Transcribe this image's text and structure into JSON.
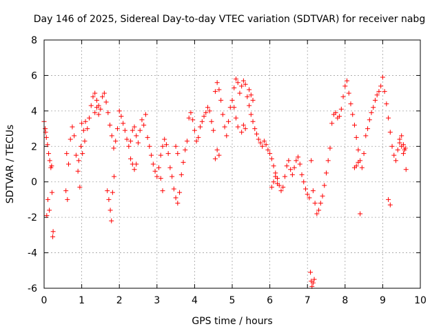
{
  "chart_data": {
    "type": "scatter",
    "title": "Day 146 of 2025, Sidereal Day-to-day VTEC variation (SDTVAR) for receiver nabg",
    "xlabel": "GPS time / hours",
    "ylabel": "SDTVAR / TECUs",
    "xlim": [
      0,
      10
    ],
    "ylim": [
      -6,
      8
    ],
    "xticks": [
      "0",
      "1",
      "2",
      "3",
      "4",
      "5",
      "6",
      "7",
      "8",
      "9",
      "10"
    ],
    "yticks": [
      "-6",
      "-4",
      "-2",
      "0",
      "2",
      "4",
      "6",
      "8"
    ],
    "grid": true,
    "marker": "+",
    "marker_color": "#ff0000",
    "series": [
      {
        "name": "SDTVAR",
        "x": [
          0.0,
          0.03,
          0.06,
          0.09,
          0.12,
          0.15,
          0.18,
          0.21,
          0.24,
          0.04,
          0.07,
          0.1,
          0.14,
          0.2,
          0.23,
          0.6,
          0.65,
          0.7,
          0.75,
          0.8,
          0.85,
          0.9,
          0.95,
          1.0,
          1.05,
          1.1,
          1.15,
          1.2,
          1.25,
          1.3,
          1.35,
          1.4,
          1.45,
          1.5,
          1.55,
          1.6,
          1.65,
          1.7,
          1.75,
          1.8,
          1.85,
          1.9,
          1.95,
          2.0,
          2.05,
          2.1,
          2.15,
          2.2,
          2.25,
          2.3,
          2.35,
          2.4,
          2.45,
          2.5,
          2.55,
          2.6,
          2.65,
          2.7,
          2.75,
          2.8,
          1.68,
          1.72,
          1.76,
          1.79,
          1.82,
          1.86,
          0.62,
          0.58,
          0.92,
          0.98,
          1.02,
          1.08,
          2.85,
          2.9,
          2.95,
          3.0,
          3.05,
          3.1,
          3.15,
          3.2,
          3.25,
          3.3,
          3.35,
          3.4,
          3.45,
          3.5,
          3.55,
          3.6,
          3.65,
          3.7,
          3.75,
          3.8,
          3.85,
          3.9,
          3.95,
          4.0,
          4.05,
          4.1,
          4.15,
          4.2,
          4.25,
          4.3,
          4.35,
          4.4,
          4.45,
          4.5,
          4.55,
          4.6,
          4.65,
          4.7,
          4.75,
          4.8,
          4.85,
          4.9,
          4.95,
          5.0,
          5.05,
          5.1,
          5.15,
          5.2,
          5.25,
          5.3,
          5.35,
          5.4,
          5.45,
          5.5,
          5.55,
          5.6,
          5.65,
          5.7,
          5.75,
          5.8,
          5.85,
          5.9,
          5.95,
          6.0,
          6.05,
          6.1,
          6.15,
          6.2,
          6.25,
          6.3,
          6.35,
          6.4,
          6.45,
          6.5,
          6.55,
          6.6,
          6.65,
          6.7,
          6.75,
          6.8,
          6.85,
          6.9,
          6.95,
          7.0,
          7.05,
          7.1,
          7.15,
          7.2,
          7.25,
          7.3,
          7.35,
          7.4,
          7.45,
          7.5,
          7.55,
          7.6,
          7.65,
          7.7,
          7.75,
          7.8,
          7.85,
          7.9,
          7.95,
          8.0,
          8.05,
          8.1,
          8.15,
          8.2,
          8.25,
          8.3,
          8.35,
          8.4,
          8.45,
          8.5,
          8.55,
          8.6,
          8.65,
          8.7,
          8.75,
          8.8,
          8.85,
          8.9,
          8.95,
          9.0,
          9.05,
          9.1,
          9.15,
          9.2,
          9.25,
          9.3,
          9.35,
          9.4,
          9.45,
          9.5,
          9.55,
          9.6,
          9.62,
          7.08,
          7.1,
          7.12,
          7.15,
          7.18,
          3.1,
          3.15,
          3.5,
          3.55,
          4.55,
          4.6,
          4.65,
          5.05,
          5.1,
          5.15,
          5.25,
          5.3,
          5.35,
          5.45,
          5.5,
          5.55,
          8.25,
          8.3,
          8.35,
          8.4,
          9.15,
          9.2,
          9.45,
          9.5,
          9.55,
          9.58,
          6.05,
          6.1,
          6.15,
          6.2,
          2.3,
          2.35,
          2.4,
          2.45,
          1.35,
          1.4,
          1.45
        ],
        "y": [
          3.4,
          3.0,
          2.5,
          2.1,
          1.6,
          1.2,
          0.8,
          -0.6,
          -2.8,
          2.8,
          -1.9,
          -1.0,
          -1.6,
          0.9,
          -3.1,
          1.6,
          1.0,
          2.4,
          3.1,
          2.6,
          1.5,
          0.6,
          -0.3,
          3.3,
          2.9,
          3.4,
          3.0,
          3.6,
          4.3,
          4.8,
          5.0,
          4.6,
          4.3,
          4.1,
          4.8,
          5.0,
          4.5,
          3.9,
          3.2,
          2.6,
          1.9,
          2.3,
          3.0,
          4.0,
          3.7,
          3.3,
          2.9,
          2.4,
          2.0,
          2.3,
          2.9,
          3.1,
          2.6,
          2.2,
          2.9,
          3.5,
          3.2,
          3.8,
          2.5,
          2.0,
          -0.5,
          -1.0,
          -1.6,
          -2.2,
          -0.6,
          0.3,
          -1.0,
          -0.5,
          1.2,
          2.0,
          1.6,
          2.3,
          1.5,
          1.0,
          0.6,
          0.3,
          0.8,
          1.5,
          2.0,
          2.4,
          2.1,
          1.6,
          0.8,
          0.3,
          -0.4,
          -0.9,
          -1.2,
          -0.6,
          0.4,
          1.1,
          1.8,
          2.3,
          3.6,
          3.9,
          3.5,
          2.9,
          2.3,
          2.5,
          3.1,
          3.4,
          3.7,
          3.9,
          4.2,
          4.0,
          3.4,
          2.9,
          5.1,
          5.6,
          5.2,
          4.6,
          3.8,
          3.1,
          2.6,
          3.4,
          4.2,
          4.6,
          5.3,
          5.8,
          5.6,
          5.0,
          5.4,
          5.7,
          5.5,
          4.8,
          4.3,
          3.8,
          3.4,
          3.0,
          2.7,
          2.4,
          2.2,
          2.0,
          2.3,
          2.1,
          1.8,
          1.6,
          1.3,
          0.9,
          0.5,
          0.2,
          -0.2,
          -0.5,
          -0.3,
          0.3,
          0.9,
          1.2,
          0.7,
          0.4,
          0.8,
          1.2,
          1.4,
          1.0,
          0.4,
          0.0,
          -0.4,
          -0.7,
          -0.9,
          1.2,
          -0.5,
          -1.2,
          -1.8,
          -1.6,
          -1.2,
          -0.8,
          -0.2,
          0.5,
          1.2,
          1.9,
          3.3,
          3.8,
          3.9,
          3.6,
          3.7,
          4.1,
          4.8,
          5.4,
          5.7,
          5.0,
          4.4,
          3.8,
          3.2,
          2.5,
          1.8,
          1.2,
          0.8,
          1.6,
          2.6,
          3.0,
          3.5,
          3.9,
          4.2,
          4.6,
          4.9,
          5.1,
          5.4,
          5.9,
          5.1,
          4.4,
          3.6,
          2.8,
          2.0,
          1.5,
          1.2,
          1.8,
          2.2,
          2.6,
          2.1,
          1.9,
          0.7,
          -5.1,
          -5.6,
          -5.9,
          -5.7,
          -5.5,
          0.2,
          -0.5,
          2.0,
          1.6,
          1.3,
          1.8,
          1.5,
          4.2,
          3.6,
          3.1,
          2.8,
          3.2,
          3.0,
          5.2,
          4.9,
          4.6,
          0.8,
          0.9,
          1.1,
          -1.8,
          -1.0,
          -1.3,
          2.4,
          2.0,
          1.6,
          1.8,
          -0.3,
          0.0,
          0.3,
          -0.1,
          1.3,
          1.0,
          0.7,
          1.0,
          3.9,
          4.2,
          3.8
        ]
      }
    ]
  }
}
